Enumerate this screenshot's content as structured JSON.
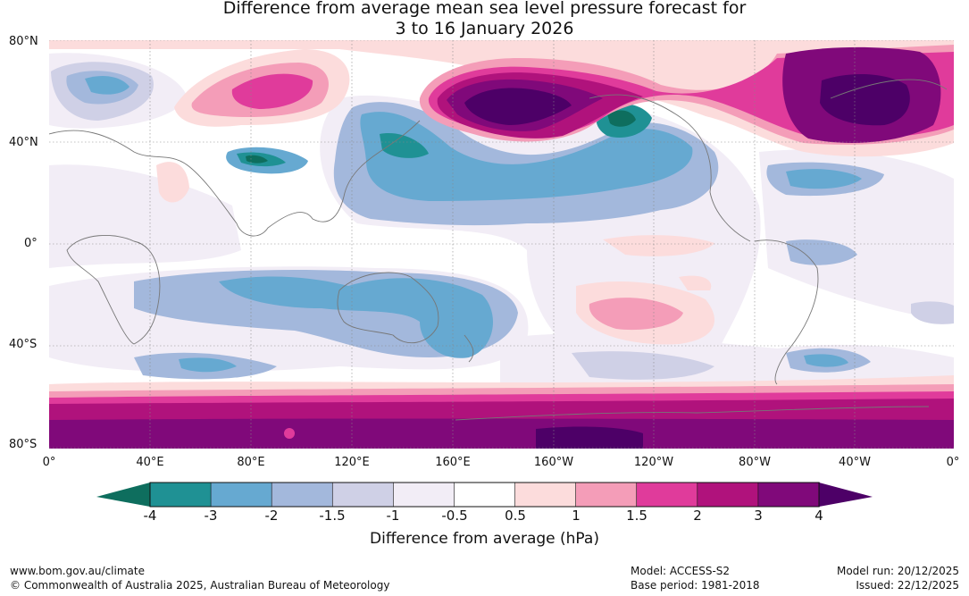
{
  "title_line1": "Difference from average mean sea level pressure forecast for",
  "title_line2": "3 to 16 January 2026",
  "lat_labels": [
    "80°N",
    "40°N",
    "0°",
    "40°S",
    "80°S"
  ],
  "lon_labels": [
    "0°",
    "40°E",
    "80°E",
    "120°E",
    "160°E",
    "160°W",
    "120°W",
    "80°W",
    "40°W",
    "0°"
  ],
  "colorbar": {
    "title": "Difference from average (hPa)",
    "ticks": [
      "-4",
      "-3",
      "-2",
      "-1.5",
      "-1",
      "-0.5",
      "0.5",
      "1",
      "1.5",
      "2",
      "3",
      "4"
    ],
    "colors": [
      "#0e6e5e",
      "#1f9194",
      "#66a9d1",
      "#a3b8dc",
      "#cfd0e6",
      "#f2edf6",
      "#ffffff",
      "#fcdcdc",
      "#f49db8",
      "#e03b9b",
      "#b0127c",
      "#80097a",
      "#4d0067"
    ]
  },
  "footer": {
    "url": "www.bom.gov.au/climate",
    "copyright": "© Commonwealth of Australia 2025, Australian Bureau of Meteorology",
    "model": "Model: ACCESS-S2",
    "base_period": "Base period: 1981-2018",
    "model_run": "Model run: 20/12/2025",
    "issued": "Issued: 22/12/2025"
  }
}
